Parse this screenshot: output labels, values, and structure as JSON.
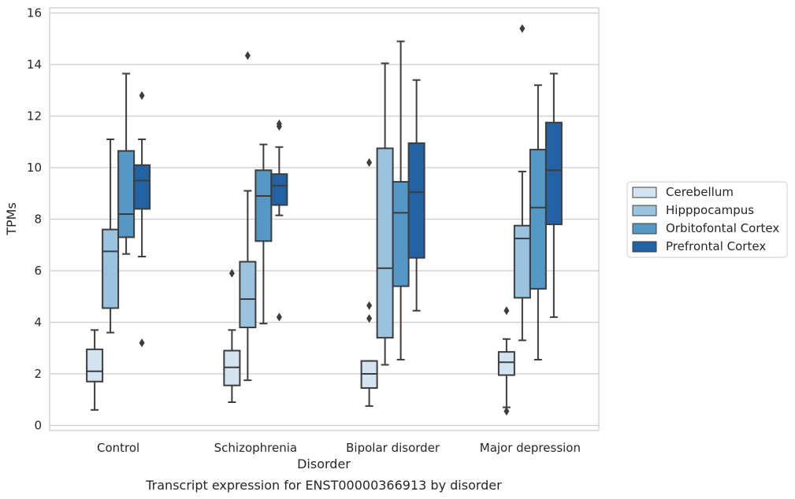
{
  "chart_data": {
    "type": "box",
    "caption": "Transcript expression for ENST00000366913 by disorder",
    "xlabel": "Disorder",
    "ylabel": "TPMs",
    "ylim": [
      -0.2,
      16.2
    ],
    "yticks": [
      0,
      2,
      4,
      6,
      8,
      10,
      12,
      14,
      16
    ],
    "categories": [
      "Control",
      "Schizophrenia",
      "Bipolar disorder",
      "Major depression"
    ],
    "grid": "horizontal",
    "legend_position": "right",
    "series": [
      {
        "name": "Cerebellum",
        "color": "#d3e3f2",
        "boxes": [
          {
            "whisker_low": 0.6,
            "q1": 1.7,
            "median": 2.1,
            "q3": 2.95,
            "whisker_high": 3.7,
            "outliers": []
          },
          {
            "whisker_low": 0.9,
            "q1": 1.55,
            "median": 2.25,
            "q3": 2.9,
            "whisker_high": 3.7,
            "outliers": [
              5.9
            ]
          },
          {
            "whisker_low": 0.75,
            "q1": 1.45,
            "median": 2.0,
            "q3": 2.5,
            "whisker_high": 2.5,
            "outliers": [
              4.15,
              4.65,
              10.2
            ]
          },
          {
            "whisker_low": 0.7,
            "q1": 1.95,
            "median": 2.45,
            "q3": 2.85,
            "whisker_high": 3.35,
            "outliers": [
              0.55,
              4.45
            ]
          }
        ]
      },
      {
        "name": "Hipppocampus",
        "color": "#9ac3df",
        "boxes": [
          {
            "whisker_low": 3.6,
            "q1": 4.55,
            "median": 6.75,
            "q3": 7.6,
            "whisker_high": 11.1,
            "outliers": []
          },
          {
            "whisker_low": 1.75,
            "q1": 3.8,
            "median": 4.9,
            "q3": 6.35,
            "whisker_high": 9.1,
            "outliers": [
              14.35
            ]
          },
          {
            "whisker_low": 2.35,
            "q1": 3.4,
            "median": 6.1,
            "q3": 10.75,
            "whisker_high": 14.05,
            "outliers": []
          },
          {
            "whisker_low": 3.3,
            "q1": 4.95,
            "median": 7.25,
            "q3": 7.75,
            "whisker_high": 9.85,
            "outliers": [
              15.4
            ]
          }
        ]
      },
      {
        "name": "Orbitofontal Cortex",
        "color": "#5598c6",
        "boxes": [
          {
            "whisker_low": 6.65,
            "q1": 7.3,
            "median": 8.2,
            "q3": 10.65,
            "whisker_high": 13.65,
            "outliers": []
          },
          {
            "whisker_low": 3.95,
            "q1": 7.15,
            "median": 8.9,
            "q3": 9.9,
            "whisker_high": 10.9,
            "outliers": []
          },
          {
            "whisker_low": 2.55,
            "q1": 5.4,
            "median": 8.25,
            "q3": 9.45,
            "whisker_high": 14.9,
            "outliers": []
          },
          {
            "whisker_low": 2.55,
            "q1": 5.3,
            "median": 8.45,
            "q3": 10.7,
            "whisker_high": 13.2,
            "outliers": []
          }
        ]
      },
      {
        "name": "Prefrontal Cortex",
        "color": "#2363a3",
        "boxes": [
          {
            "whisker_low": 6.55,
            "q1": 8.4,
            "median": 9.5,
            "q3": 10.1,
            "whisker_high": 11.1,
            "outliers": [
              3.2,
              12.8
            ]
          },
          {
            "whisker_low": 8.15,
            "q1": 8.55,
            "median": 9.3,
            "q3": 9.75,
            "whisker_high": 10.8,
            "outliers": [
              4.2,
              11.6,
              11.7
            ]
          },
          {
            "whisker_low": 4.45,
            "q1": 6.5,
            "median": 9.05,
            "q3": 10.95,
            "whisker_high": 13.4,
            "outliers": []
          },
          {
            "whisker_low": 4.2,
            "q1": 7.8,
            "median": 9.9,
            "q3": 11.75,
            "whisker_high": 13.65,
            "outliers": []
          }
        ]
      }
    ]
  }
}
